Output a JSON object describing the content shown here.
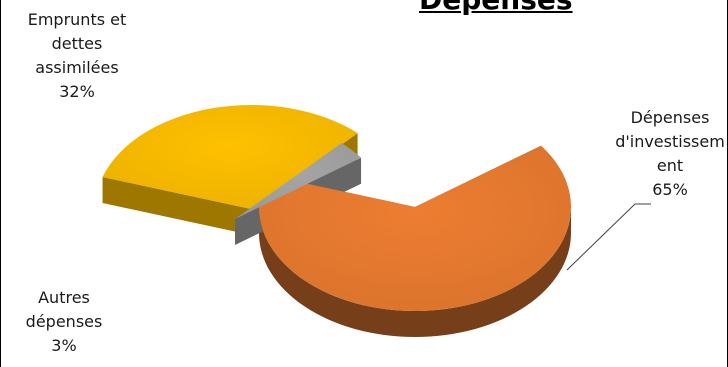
{
  "chart_data": {
    "type": "pie",
    "title": "Dépenses",
    "slices": [
      {
        "label_lines": [
          "Dépenses",
          "d'investissem",
          "ent"
        ],
        "value": 65,
        "percent_label": "65%",
        "color": "#ED7D31"
      },
      {
        "label_lines": [
          "Emprunts et",
          "dettes",
          "assimilées"
        ],
        "value": 32,
        "percent_label": "32%",
        "color": "#FFC000"
      },
      {
        "label_lines": [
          "Autres",
          "dépenses"
        ],
        "value": 3,
        "percent_label": "3%",
        "color": "#A5A5A5"
      }
    ]
  }
}
